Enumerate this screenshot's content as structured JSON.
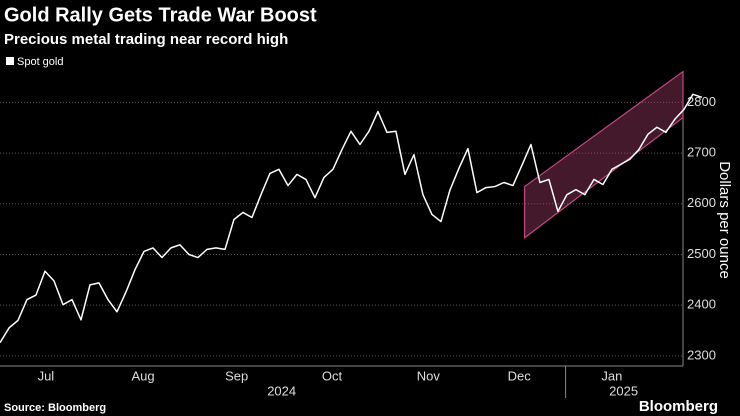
{
  "chart_data": {
    "type": "line",
    "title": "Gold Rally Gets Trade War Boost",
    "subtitle": "Precious metal trading near record high",
    "source": "Source: Bloomberg",
    "brand": "Bloomberg",
    "y_label": "Dollars per ounce",
    "series": [
      {
        "name": "Spot gold",
        "color": "#ffffff",
        "values": [
          2326,
          2355,
          2370,
          2411,
          2420,
          2467,
          2448,
          2401,
          2411,
          2371,
          2440,
          2444,
          2411,
          2387,
          2426,
          2470,
          2506,
          2513,
          2494,
          2513,
          2519,
          2500,
          2494,
          2510,
          2513,
          2510,
          2569,
          2583,
          2573,
          2618,
          2660,
          2668,
          2636,
          2658,
          2648,
          2612,
          2652,
          2668,
          2707,
          2743,
          2717,
          2743,
          2782,
          2741,
          2743,
          2658,
          2697,
          2618,
          2579,
          2565,
          2627,
          2670,
          2709,
          2622,
          2632,
          2634,
          2642,
          2636,
          2676,
          2717,
          2642,
          2648,
          2585,
          2618,
          2628,
          2618,
          2648,
          2638,
          2668,
          2678,
          2688,
          2707,
          2737,
          2751,
          2741,
          2767,
          2786,
          2816,
          2810
        ]
      }
    ],
    "channel": {
      "x": [
        58.3,
        75.9
      ],
      "upper": [
        2634,
        2861
      ],
      "lower": [
        2533,
        2770
      ],
      "color": "#c2477f"
    },
    "xlim": [
      0,
      75.9
    ],
    "xticks": [
      {
        "value": 5.1,
        "label": "Jul"
      },
      {
        "value": 15.9,
        "label": "Aug"
      },
      {
        "value": 26.3,
        "label": "Sep"
      },
      {
        "value": 36.9,
        "label": "Oct"
      },
      {
        "value": 47.6,
        "label": "Nov"
      },
      {
        "value": 57.7,
        "label": "Dec"
      },
      {
        "value": 68,
        "label": "Jan"
      }
    ],
    "year_labels": [
      {
        "value": 31.3,
        "label": "2024"
      },
      {
        "value": 69.3,
        "label": "2025"
      }
    ],
    "ylim": [
      2280,
      2860
    ],
    "yticks": [
      2300,
      2400,
      2500,
      2600,
      2700,
      2800
    ],
    "grid": true
  }
}
